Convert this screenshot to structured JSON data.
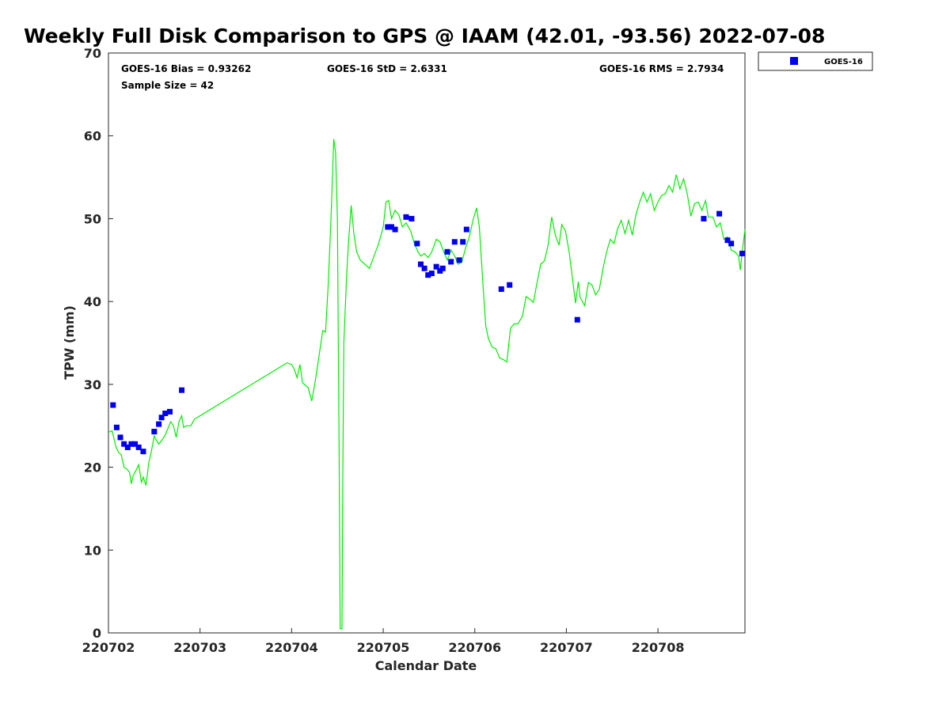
{
  "chart_data": {
    "type": "scatter",
    "title": "Weekly Full Disk Comparison to GPS @ IAAM (42.01, -93.56) 2022-07-08",
    "xlabel": "Calendar Date",
    "ylabel": "TPW (mm)",
    "xlim": [
      0,
      6.95
    ],
    "ylim": [
      0,
      70
    ],
    "xticks": [
      {
        "value": 0,
        "label": "220702"
      },
      {
        "value": 1,
        "label": "220703"
      },
      {
        "value": 2,
        "label": "220704"
      },
      {
        "value": 3,
        "label": "220705"
      },
      {
        "value": 4,
        "label": "220706"
      },
      {
        "value": 5,
        "label": "220707"
      },
      {
        "value": 6,
        "label": "220708"
      }
    ],
    "yticks": [
      0,
      10,
      20,
      30,
      40,
      50,
      60,
      70
    ],
    "grid": false,
    "legend_position": "outside top-right",
    "stats": {
      "bias": "GOES-16 Bias = 0.93262",
      "std": "GOES-16 StD = 2.6331",
      "rms": "GOES-16 RMS = 2.7934",
      "sample": "Sample Size = 42"
    },
    "series": [
      {
        "name": "GOES-16",
        "type": "scatter",
        "color": "#0000ee",
        "marker": "square",
        "points": [
          [
            0.05,
            27.5
          ],
          [
            0.09,
            24.8
          ],
          [
            0.13,
            23.6
          ],
          [
            0.17,
            22.8
          ],
          [
            0.21,
            22.4
          ],
          [
            0.25,
            22.8
          ],
          [
            0.29,
            22.8
          ],
          [
            0.33,
            22.4
          ],
          [
            0.38,
            21.9
          ],
          [
            0.5,
            24.3
          ],
          [
            0.55,
            25.2
          ],
          [
            0.58,
            26.0
          ],
          [
            0.62,
            26.5
          ],
          [
            0.67,
            26.7
          ],
          [
            0.8,
            29.3
          ],
          [
            3.05,
            49.0
          ],
          [
            3.09,
            49.0
          ],
          [
            3.13,
            48.7
          ],
          [
            3.25,
            50.2
          ],
          [
            3.31,
            50.0
          ],
          [
            3.37,
            47.0
          ],
          [
            3.41,
            44.5
          ],
          [
            3.45,
            44.0
          ],
          [
            3.49,
            43.2
          ],
          [
            3.53,
            43.4
          ],
          [
            3.58,
            44.2
          ],
          [
            3.62,
            43.7
          ],
          [
            3.65,
            44.0
          ],
          [
            3.7,
            46.0
          ],
          [
            3.74,
            44.8
          ],
          [
            3.78,
            47.2
          ],
          [
            3.83,
            45.0
          ],
          [
            3.87,
            47.2
          ],
          [
            3.91,
            48.7
          ],
          [
            4.29,
            41.5
          ],
          [
            4.38,
            42.0
          ],
          [
            5.12,
            37.8
          ],
          [
            6.5,
            50.0
          ],
          [
            6.67,
            50.6
          ],
          [
            6.76,
            47.4
          ],
          [
            6.8,
            47.0
          ],
          [
            6.92,
            45.8
          ]
        ]
      },
      {
        "name": "",
        "type": "line",
        "color": "#00ee00",
        "points": [
          [
            0.0,
            24.2
          ],
          [
            0.04,
            24.4
          ],
          [
            0.08,
            22.5
          ],
          [
            0.11,
            21.8
          ],
          [
            0.14,
            21.5
          ],
          [
            0.17,
            20.0
          ],
          [
            0.2,
            19.8
          ],
          [
            0.23,
            19.4
          ],
          [
            0.25,
            18.0
          ],
          [
            0.27,
            19.0
          ],
          [
            0.3,
            19.6
          ],
          [
            0.33,
            20.3
          ],
          [
            0.36,
            18.2
          ],
          [
            0.38,
            18.8
          ],
          [
            0.41,
            17.8
          ],
          [
            0.44,
            20.5
          ],
          [
            0.47,
            22.0
          ],
          [
            0.5,
            23.8
          ],
          [
            0.52,
            23.3
          ],
          [
            0.55,
            22.8
          ],
          [
            0.58,
            23.2
          ],
          [
            0.62,
            23.9
          ],
          [
            0.65,
            24.7
          ],
          [
            0.68,
            25.5
          ],
          [
            0.71,
            25.0
          ],
          [
            0.74,
            23.6
          ],
          [
            0.77,
            25.5
          ],
          [
            0.8,
            26.2
          ],
          [
            0.82,
            24.8
          ],
          [
            0.85,
            25.0
          ],
          [
            0.9,
            25.0
          ],
          [
            0.94,
            25.8
          ],
          [
            1.95,
            32.6
          ],
          [
            2.0,
            32.4
          ],
          [
            2.03,
            31.8
          ],
          [
            2.06,
            30.8
          ],
          [
            2.09,
            32.4
          ],
          [
            2.12,
            30.2
          ],
          [
            2.18,
            29.6
          ],
          [
            2.22,
            28.0
          ],
          [
            2.26,
            30.5
          ],
          [
            2.3,
            33.5
          ],
          [
            2.34,
            36.5
          ],
          [
            2.37,
            36.3
          ],
          [
            2.4,
            42.0
          ],
          [
            2.43,
            50.0
          ],
          [
            2.46,
            59.6
          ],
          [
            2.48,
            58.0
          ],
          [
            2.5,
            50.0
          ],
          [
            2.52,
            20.0
          ],
          [
            2.53,
            0.5
          ],
          [
            2.55,
            0.5
          ],
          [
            2.56,
            20.0
          ],
          [
            2.57,
            35.0
          ],
          [
            2.6,
            43.0
          ],
          [
            2.62,
            47.0
          ],
          [
            2.65,
            51.6
          ],
          [
            2.68,
            48.2
          ],
          [
            2.71,
            46.0
          ],
          [
            2.75,
            45.0
          ],
          [
            2.8,
            44.5
          ],
          [
            2.85,
            44.0
          ],
          [
            2.9,
            45.5
          ],
          [
            2.95,
            47.0
          ],
          [
            3.0,
            49.0
          ],
          [
            3.03,
            52.0
          ],
          [
            3.06,
            52.2
          ],
          [
            3.09,
            50.0
          ],
          [
            3.13,
            51.0
          ],
          [
            3.17,
            50.5
          ],
          [
            3.21,
            49.0
          ],
          [
            3.25,
            49.5
          ],
          [
            3.3,
            48.5
          ],
          [
            3.34,
            47.0
          ],
          [
            3.38,
            46.0
          ],
          [
            3.41,
            45.5
          ],
          [
            3.45,
            45.8
          ],
          [
            3.49,
            45.3
          ],
          [
            3.53,
            46.0
          ],
          [
            3.58,
            47.5
          ],
          [
            3.62,
            47.2
          ],
          [
            3.66,
            46.0
          ],
          [
            3.7,
            45.0
          ],
          [
            3.74,
            46.2
          ],
          [
            3.78,
            45.5
          ],
          [
            3.82,
            44.5
          ],
          [
            3.86,
            44.8
          ],
          [
            3.9,
            46.5
          ],
          [
            3.94,
            47.8
          ],
          [
            3.98,
            49.8
          ],
          [
            4.02,
            51.3
          ],
          [
            4.05,
            49.0
          ],
          [
            4.09,
            42.0
          ],
          [
            4.12,
            37.0
          ],
          [
            4.15,
            35.5
          ],
          [
            4.19,
            34.5
          ],
          [
            4.23,
            34.3
          ],
          [
            4.27,
            33.2
          ],
          [
            4.31,
            33.0
          ],
          [
            4.35,
            32.7
          ],
          [
            4.39,
            36.8
          ],
          [
            4.43,
            37.3
          ],
          [
            4.47,
            37.3
          ],
          [
            4.52,
            38.2
          ],
          [
            4.56,
            40.6
          ],
          [
            4.6,
            40.3
          ],
          [
            4.64,
            39.9
          ],
          [
            4.68,
            42.3
          ],
          [
            4.72,
            44.5
          ],
          [
            4.76,
            44.9
          ],
          [
            4.8,
            46.8
          ],
          [
            4.84,
            50.2
          ],
          [
            4.88,
            48.0
          ],
          [
            4.92,
            46.8
          ],
          [
            4.95,
            49.3
          ],
          [
            4.99,
            48.5
          ],
          [
            5.03,
            46.0
          ],
          [
            5.07,
            42.5
          ],
          [
            5.1,
            39.8
          ],
          [
            5.13,
            42.4
          ],
          [
            5.15,
            40.5
          ],
          [
            5.2,
            39.5
          ],
          [
            5.24,
            42.3
          ],
          [
            5.28,
            42.0
          ],
          [
            5.32,
            40.8
          ],
          [
            5.36,
            41.5
          ],
          [
            5.4,
            44.0
          ],
          [
            5.44,
            46.0
          ],
          [
            5.48,
            47.5
          ],
          [
            5.52,
            47.0
          ],
          [
            5.56,
            48.8
          ],
          [
            5.6,
            49.8
          ],
          [
            5.64,
            48.2
          ],
          [
            5.68,
            49.8
          ],
          [
            5.72,
            48.0
          ],
          [
            5.76,
            50.5
          ],
          [
            5.8,
            52.0
          ],
          [
            5.84,
            53.2
          ],
          [
            5.88,
            52.0
          ],
          [
            5.92,
            53.0
          ],
          [
            5.96,
            51.0
          ],
          [
            6.0,
            52.0
          ],
          [
            6.04,
            52.8
          ],
          [
            6.08,
            53.0
          ],
          [
            6.12,
            54.0
          ],
          [
            6.16,
            53.2
          ],
          [
            6.2,
            55.3
          ],
          [
            6.24,
            53.6
          ],
          [
            6.28,
            54.8
          ],
          [
            6.32,
            53.0
          ],
          [
            6.36,
            50.3
          ],
          [
            6.4,
            51.8
          ],
          [
            6.44,
            52.0
          ],
          [
            6.48,
            51.0
          ],
          [
            6.52,
            52.2
          ],
          [
            6.55,
            50.2
          ],
          [
            6.6,
            50.2
          ],
          [
            6.64,
            49.0
          ],
          [
            6.68,
            49.5
          ],
          [
            6.72,
            47.5
          ],
          [
            6.76,
            47.8
          ],
          [
            6.8,
            46.2
          ],
          [
            6.84,
            46.0
          ],
          [
            6.88,
            45.5
          ],
          [
            6.9,
            43.8
          ],
          [
            6.92,
            46.0
          ],
          [
            6.95,
            48.7
          ]
        ]
      }
    ]
  }
}
